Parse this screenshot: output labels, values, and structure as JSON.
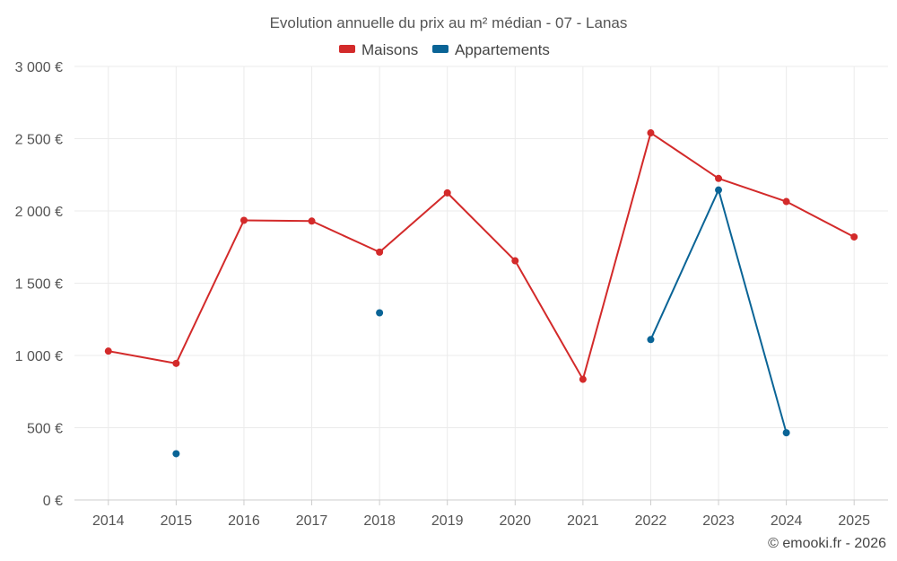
{
  "chart_data": {
    "type": "line",
    "title": "Evolution annuelle du prix au m² médian - 07 - Lanas",
    "categories": [
      "2014",
      "2015",
      "2016",
      "2017",
      "2018",
      "2019",
      "2020",
      "2021",
      "2022",
      "2023",
      "2024",
      "2025"
    ],
    "ylim": [
      0,
      3000
    ],
    "yticks": [
      0,
      500,
      1000,
      1500,
      2000,
      2500,
      3000
    ],
    "ytick_labels": [
      "0 €",
      "500 €",
      "1 000 €",
      "1 500 €",
      "2 000 €",
      "2 500 €",
      "3 000 €"
    ],
    "xlabel": "",
    "ylabel": "",
    "grid": true,
    "legend_position": "top-center",
    "series": [
      {
        "name": "Maisons",
        "color": "#d32a2a",
        "values": [
          1030,
          945,
          1935,
          1930,
          1715,
          2125,
          1655,
          835,
          2540,
          2225,
          2065,
          1820
        ]
      },
      {
        "name": "Appartements",
        "color": "#0a6496",
        "values": [
          null,
          320,
          null,
          null,
          1295,
          null,
          null,
          null,
          1110,
          2145,
          465,
          null
        ]
      }
    ]
  },
  "credit": "© emooki.fr - 2026"
}
